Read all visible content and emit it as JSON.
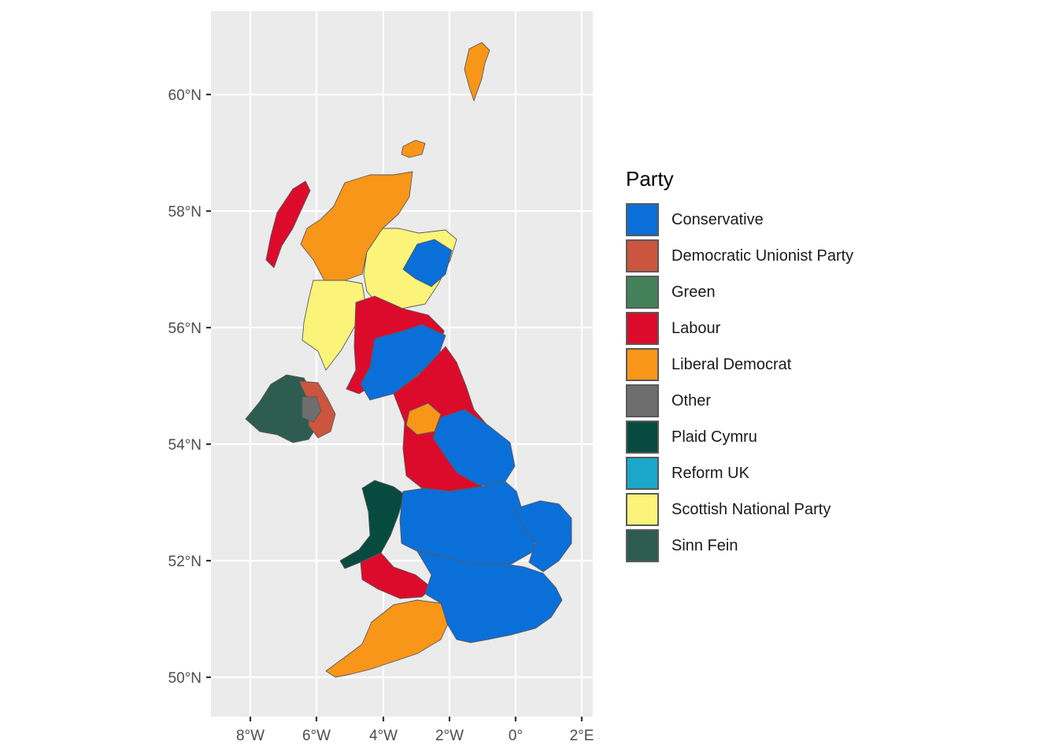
{
  "legend": {
    "title": "Party",
    "items": [
      {
        "label": "Conservative",
        "color": "#0A6FD8"
      },
      {
        "label": "Democratic Unionist Party",
        "color": "#CC553F"
      },
      {
        "label": "Green",
        "color": "#44805A"
      },
      {
        "label": "Labour",
        "color": "#DC0A2B"
      },
      {
        "label": "Liberal Democrat",
        "color": "#F89619"
      },
      {
        "label": "Other",
        "color": "#6E6E6E"
      },
      {
        "label": "Plaid Cymru",
        "color": "#074B40"
      },
      {
        "label": "Reform UK",
        "color": "#1BA7C9"
      },
      {
        "label": "Scottish National Party",
        "color": "#FCF47A"
      },
      {
        "label": "Sinn Fein",
        "color": "#2F5C50"
      }
    ]
  },
  "axes": {
    "x_ticks": [
      "8°W",
      "6°W",
      "4°W",
      "2°W",
      "0°",
      "2°E"
    ],
    "y_ticks": [
      "60°N",
      "58°N",
      "56°N",
      "54°N",
      "52°N",
      "50°N"
    ]
  },
  "regions": [
    {
      "name": "shetland",
      "party": "Liberal Democrat"
    },
    {
      "name": "orkney",
      "party": "Liberal Democrat"
    },
    {
      "name": "western-isles",
      "party": "Labour"
    },
    {
      "name": "northern-highlands",
      "party": "Liberal Democrat"
    },
    {
      "name": "northeast-scotland",
      "party": "Scottish National Party"
    },
    {
      "name": "aberdeenshire",
      "party": "Conservative"
    },
    {
      "name": "argyll",
      "party": "Scottish National Party"
    },
    {
      "name": "central-belt",
      "party": "Labour"
    },
    {
      "name": "scottish-borders",
      "party": "Conservative"
    },
    {
      "name": "northern-ireland-west",
      "party": "Sinn Fein"
    },
    {
      "name": "northern-ireland-east",
      "party": "Democratic Unionist Party"
    },
    {
      "name": "northern-ireland-other",
      "party": "Other"
    },
    {
      "name": "north-england",
      "party": "Labour"
    },
    {
      "name": "lake-district",
      "party": "Liberal Democrat"
    },
    {
      "name": "yorkshire-east",
      "party": "Conservative"
    },
    {
      "name": "north-wales",
      "party": "Plaid Cymru"
    },
    {
      "name": "wales-south",
      "party": "Labour"
    },
    {
      "name": "midlands",
      "party": "Conservative"
    },
    {
      "name": "east-anglia",
      "party": "Conservative"
    },
    {
      "name": "southwest",
      "party": "Liberal Democrat"
    },
    {
      "name": "south-england",
      "party": "Conservative"
    }
  ]
}
